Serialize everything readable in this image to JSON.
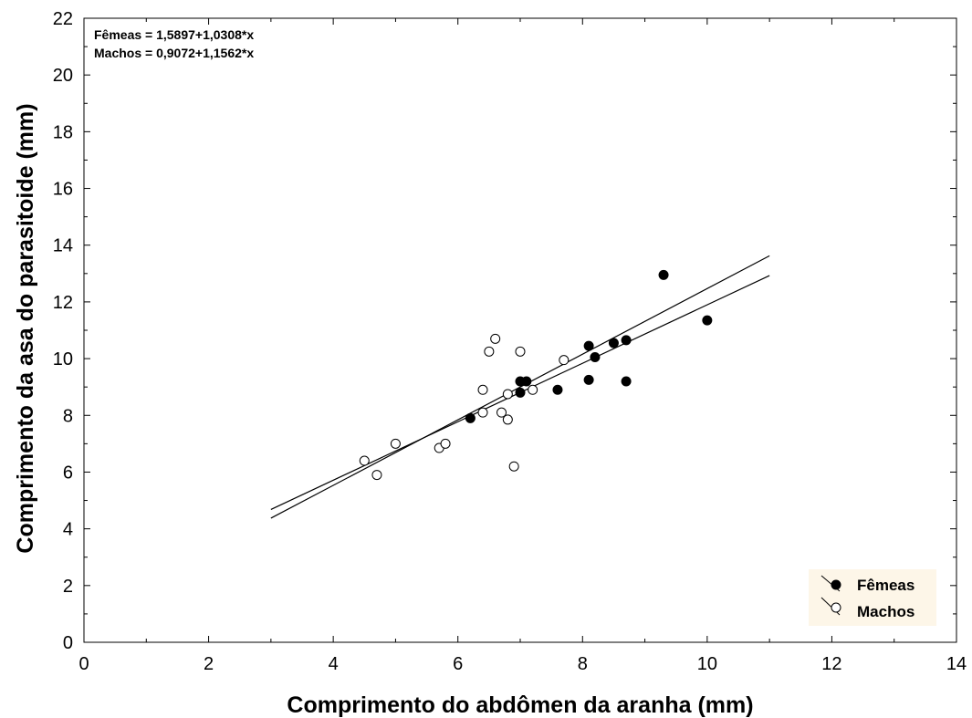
{
  "chart_data": {
    "type": "scatter",
    "title": "",
    "xlabel": "Comprimento do abdômen da aranha (mm)",
    "ylabel": "Comprimento da asa do parasitoide (mm)",
    "xlim": [
      0,
      14
    ],
    "ylim": [
      0,
      22
    ],
    "x_ticks": [
      "0",
      "2",
      "4",
      "6",
      "8",
      "10",
      "12",
      "14"
    ],
    "y_ticks": [
      "0",
      "2",
      "4",
      "6",
      "8",
      "10",
      "12",
      "14",
      "16",
      "18",
      "20",
      "22"
    ],
    "grid": false,
    "legend_placement": "bottom-right",
    "legend_background": "#fdf6e8",
    "equations": [
      "Fêmeas = 1,5897+1,0308*x",
      "Machos = 0,9072+1,1562*x"
    ],
    "series": [
      {
        "name": "Fêmeas",
        "marker": "filled-circle",
        "color": "#000000",
        "fit": {
          "intercept": 1.5897,
          "slope": 1.0308,
          "x_range": [
            3.0,
            11.0
          ]
        },
        "points": [
          [
            6.2,
            7.9
          ],
          [
            7.0,
            8.8
          ],
          [
            7.0,
            9.2
          ],
          [
            7.1,
            9.2
          ],
          [
            7.6,
            8.9
          ],
          [
            8.1,
            9.25
          ],
          [
            8.1,
            10.45
          ],
          [
            8.2,
            10.05
          ],
          [
            8.5,
            10.55
          ],
          [
            8.7,
            10.65
          ],
          [
            8.7,
            9.2
          ],
          [
            9.3,
            12.95
          ],
          [
            10.0,
            11.35
          ]
        ]
      },
      {
        "name": "Machos",
        "marker": "open-circle",
        "color": "#000000",
        "fit": {
          "intercept": 0.9072,
          "slope": 1.1562,
          "x_range": [
            3.0,
            11.0
          ]
        },
        "points": [
          [
            4.5,
            6.4
          ],
          [
            4.7,
            5.9
          ],
          [
            5.0,
            7.0
          ],
          [
            5.7,
            6.85
          ],
          [
            5.8,
            7.0
          ],
          [
            6.4,
            8.9
          ],
          [
            6.4,
            8.1
          ],
          [
            6.5,
            10.25
          ],
          [
            6.6,
            10.7
          ],
          [
            6.7,
            8.1
          ],
          [
            6.8,
            8.75
          ],
          [
            6.8,
            7.85
          ],
          [
            6.9,
            6.2
          ],
          [
            7.0,
            10.25
          ],
          [
            7.2,
            8.9
          ],
          [
            7.7,
            9.95
          ]
        ]
      }
    ]
  }
}
